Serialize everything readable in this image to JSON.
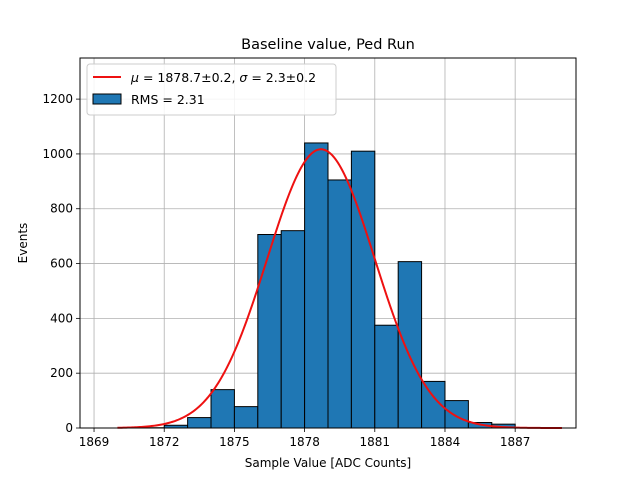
{
  "chart_data": {
    "type": "bar",
    "title": "Baseline value, Ped Run",
    "xlabel": "Sample Value [ADC Counts]",
    "ylabel": "Events",
    "xlim": [
      1868.4,
      1889.6
    ],
    "ylim": [
      0,
      1350
    ],
    "x_ticks": [
      1869,
      1872,
      1875,
      1878,
      1881,
      1884,
      1887
    ],
    "y_ticks": [
      0,
      200,
      400,
      600,
      800,
      1000,
      1200
    ],
    "grid": true,
    "legend_position": "top-left",
    "bin_edges": [
      1870,
      1871,
      1872,
      1873,
      1874,
      1875,
      1876,
      1877,
      1878,
      1879,
      1880,
      1881,
      1882,
      1883,
      1884,
      1885,
      1886,
      1887,
      1888,
      1889
    ],
    "values": [
      0,
      1,
      10,
      38,
      140,
      78,
      706,
      720,
      1040,
      905,
      1010,
      375,
      607,
      170,
      100,
      20,
      14,
      0,
      0
    ],
    "series": [
      {
        "name": "RMS = 2.31",
        "kind": "histogram",
        "color": "#1f77b4",
        "edgecolor": "#000000"
      },
      {
        "name_prefix_symbol_mu": "μ",
        "name": "= 1878.7±0.2, ",
        "name_sigma_symbol": "σ",
        "name_suffix": "= 2.3±0.2",
        "kind": "gaussian_fit",
        "color": "#ee1111",
        "mu": 1878.7,
        "sigma": 2.3,
        "amplitude": 1017,
        "x_range": [
          1870,
          1889
        ]
      }
    ]
  }
}
